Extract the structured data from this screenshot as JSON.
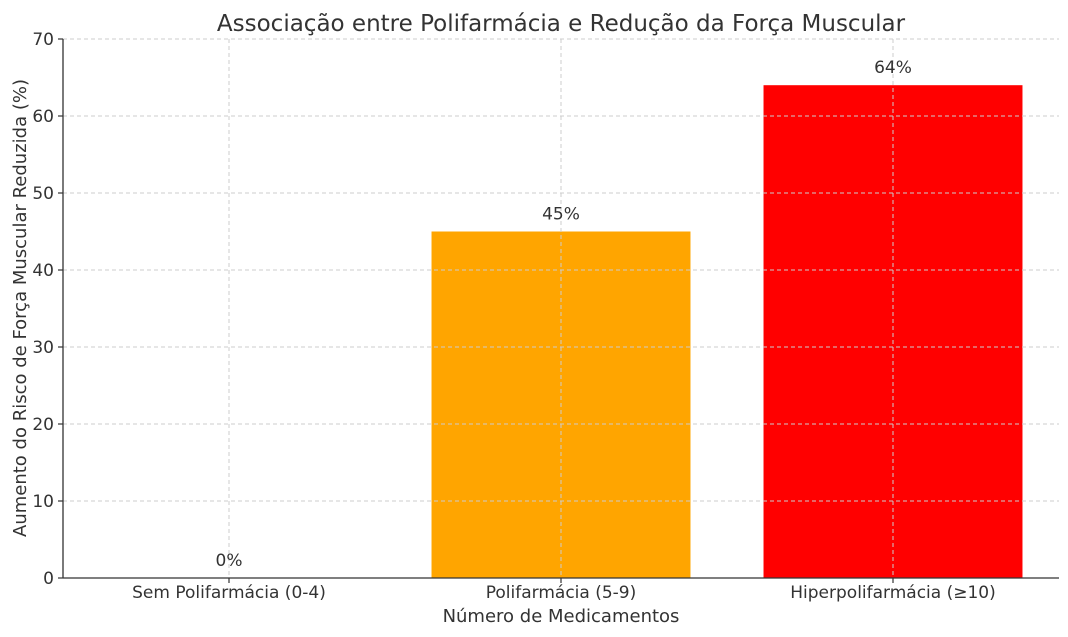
{
  "chart_data": {
    "type": "bar",
    "title": "Associação entre Polifarmácia e Redução da Força Muscular",
    "xlabel": "Número de Medicamentos",
    "ylabel": "Aumento do Risco de Força Muscular Reduzida (%)",
    "categories": [
      "Sem Polifarmácia (0-4)",
      "Polifarmácia (5-9)",
      "Hiperpolifarmácia (≥10)"
    ],
    "values": [
      0,
      45,
      64
    ],
    "value_labels": [
      "0%",
      "45%",
      "64%"
    ],
    "colors": [
      "#87CEEB",
      "#FFA500",
      "#FF0000"
    ],
    "ylim": [
      0,
      70
    ],
    "yticks": [
      0,
      10,
      20,
      30,
      40,
      50,
      60,
      70
    ],
    "grid": true
  }
}
